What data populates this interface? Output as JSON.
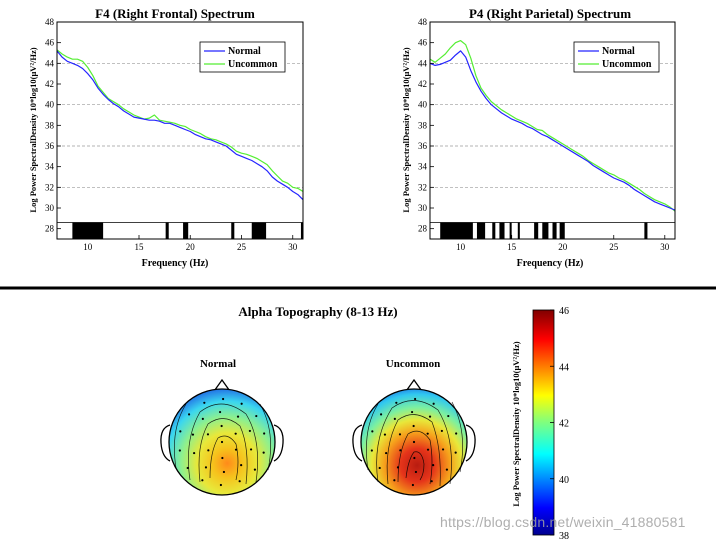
{
  "divider_color": "#000000",
  "colors": {
    "normal": "#2525ff",
    "uncommon": "#55ee33"
  },
  "chart_data": [
    {
      "type": "line",
      "title": "F4 (Right Frontal) Spectrum",
      "xlabel": "Frequency (Hz)",
      "ylabel": "Log Power SpectralDensity 10*log10(μV²/Hz)",
      "xlim": [
        7,
        31
      ],
      "ylim": [
        27,
        48
      ],
      "xticks": [
        10,
        15,
        20,
        25,
        30
      ],
      "yticks": [
        28,
        30,
        32,
        34,
        36,
        38,
        40,
        42,
        44,
        46,
        48
      ],
      "legend_position": "top-right",
      "series": [
        {
          "name": "Normal",
          "x": [
            7,
            7.5,
            8,
            8.5,
            9,
            9.5,
            10,
            10.5,
            11,
            11.5,
            12,
            12.5,
            13,
            13.5,
            14,
            14.5,
            15,
            15.5,
            16,
            16.5,
            17,
            17.5,
            18,
            18.5,
            19,
            19.5,
            20,
            20.5,
            21,
            21.5,
            22,
            22.5,
            23,
            23.5,
            24,
            24.5,
            25,
            25.5,
            26,
            26.5,
            27,
            27.5,
            28,
            28.5,
            29,
            29.5,
            30,
            30.5,
            31
          ],
          "y": [
            45.2,
            44.6,
            44.2,
            44.0,
            43.8,
            43.5,
            43.0,
            42.4,
            41.6,
            41.0,
            40.5,
            40.1,
            39.8,
            39.4,
            39.1,
            38.8,
            38.7,
            38.6,
            38.5,
            38.5,
            38.4,
            38.2,
            38.2,
            38.0,
            37.8,
            37.6,
            37.4,
            37.1,
            36.9,
            36.7,
            36.6,
            36.4,
            36.2,
            36.0,
            35.6,
            35.2,
            35.0,
            34.8,
            34.6,
            34.3,
            34.0,
            33.6,
            33.0,
            32.6,
            32.3,
            32.0,
            31.6,
            31.3,
            30.8
          ]
        },
        {
          "name": "Uncommon",
          "x": [
            7,
            7.5,
            8,
            8.5,
            9,
            9.5,
            10,
            10.5,
            11,
            11.5,
            12,
            12.5,
            13,
            13.5,
            14,
            14.5,
            15,
            15.5,
            16,
            16.5,
            17,
            17.5,
            18,
            18.5,
            19,
            19.5,
            20,
            20.5,
            21,
            21.5,
            22,
            22.5,
            23,
            23.5,
            24,
            24.5,
            25,
            25.5,
            26,
            26.5,
            27,
            27.5,
            28,
            28.5,
            29,
            29.5,
            30,
            30.5,
            31
          ],
          "y": [
            45.3,
            44.9,
            44.6,
            44.4,
            44.4,
            44.2,
            43.6,
            42.8,
            41.8,
            41.2,
            40.6,
            40.3,
            40.0,
            39.6,
            39.3,
            39.0,
            38.8,
            38.6,
            38.7,
            39.0,
            38.5,
            38.4,
            38.3,
            38.2,
            38.0,
            37.9,
            37.6,
            37.4,
            37.2,
            36.9,
            36.7,
            36.6,
            36.4,
            36.2,
            35.9,
            35.5,
            35.3,
            35.2,
            35.0,
            34.8,
            34.5,
            34.2,
            33.6,
            33.1,
            32.6,
            32.4,
            32.0,
            31.9,
            31.6
          ]
        }
      ],
      "significance_bars_hz": [
        [
          8.5,
          11.5
        ],
        [
          17.6,
          17.9
        ],
        [
          19.3,
          19.8
        ],
        [
          24.0,
          24.3
        ],
        [
          26.0,
          27.4
        ],
        [
          30.8,
          31.0
        ]
      ]
    },
    {
      "type": "line",
      "title": "P4 (Right Parietal) Spectrum",
      "xlabel": "Frequency (Hz)",
      "ylabel": "Log Power SpectralDensity 10*log10(μV²/Hz)",
      "xlim": [
        7,
        31
      ],
      "ylim": [
        27,
        48
      ],
      "xticks": [
        10,
        15,
        20,
        25,
        30
      ],
      "yticks": [
        28,
        30,
        32,
        34,
        36,
        38,
        40,
        42,
        44,
        46,
        48
      ],
      "legend_position": "top-right",
      "series": [
        {
          "name": "Normal",
          "x": [
            7,
            7.5,
            8,
            8.5,
            9,
            9.5,
            10,
            10.5,
            11,
            11.5,
            12,
            12.5,
            13,
            13.5,
            14,
            14.5,
            15,
            15.5,
            16,
            16.5,
            17,
            17.5,
            18,
            18.5,
            19,
            19.5,
            20,
            20.5,
            21,
            21.5,
            22,
            22.5,
            23,
            23.5,
            24,
            24.5,
            25,
            25.5,
            26,
            26.5,
            27,
            27.5,
            28,
            28.5,
            29,
            29.5,
            30,
            30.5,
            31
          ],
          "y": [
            44.0,
            43.8,
            43.9,
            44.1,
            44.3,
            44.8,
            45.2,
            44.6,
            43.3,
            42.2,
            41.3,
            40.6,
            40.0,
            39.6,
            39.2,
            38.9,
            38.6,
            38.4,
            38.2,
            37.9,
            37.7,
            37.4,
            37.1,
            36.9,
            36.6,
            36.3,
            36.0,
            35.7,
            35.4,
            35.1,
            34.8,
            34.5,
            34.1,
            33.8,
            33.5,
            33.2,
            32.9,
            32.7,
            32.5,
            32.2,
            31.8,
            31.5,
            31.2,
            30.9,
            30.6,
            30.4,
            30.2,
            30.0,
            29.8
          ]
        },
        {
          "name": "Uncommon",
          "x": [
            7,
            7.5,
            8,
            8.5,
            9,
            9.5,
            10,
            10.5,
            11,
            11.5,
            12,
            12.5,
            13,
            13.5,
            14,
            14.5,
            15,
            15.5,
            16,
            16.5,
            17,
            17.5,
            18,
            18.5,
            19,
            19.5,
            20,
            20.5,
            21,
            21.5,
            22,
            22.5,
            23,
            23.5,
            24,
            24.5,
            25,
            25.5,
            26,
            26.5,
            27,
            27.5,
            28,
            28.5,
            29,
            29.5,
            30,
            30.5,
            31
          ],
          "y": [
            44.4,
            44.1,
            44.5,
            44.9,
            45.5,
            46.0,
            46.2,
            45.8,
            44.5,
            42.8,
            41.6,
            40.9,
            40.3,
            39.9,
            39.5,
            39.2,
            38.9,
            38.6,
            38.4,
            38.2,
            37.9,
            37.6,
            37.5,
            37.1,
            36.8,
            36.5,
            36.2,
            35.9,
            35.6,
            35.3,
            35.0,
            34.6,
            34.3,
            34.0,
            33.7,
            33.4,
            33.2,
            32.9,
            32.7,
            32.4,
            32.1,
            31.8,
            31.4,
            31.1,
            30.8,
            30.6,
            30.4,
            30.1,
            29.7
          ]
        }
      ],
      "significance_bars_hz": [
        [
          8.0,
          11.2
        ],
        [
          11.6,
          12.4
        ],
        [
          13.1,
          13.4
        ],
        [
          13.8,
          14.3
        ],
        [
          14.8,
          15.0
        ],
        [
          15.6,
          15.8
        ],
        [
          17.2,
          17.6
        ],
        [
          18.0,
          18.6
        ],
        [
          19.0,
          19.4
        ],
        [
          19.7,
          20.2
        ],
        [
          28.0,
          28.3
        ]
      ]
    },
    {
      "type": "heatmap",
      "title": "Alpha Topography (8-13 Hz)",
      "subplots": [
        {
          "name": "Normal",
          "peak_value": 43.6,
          "edge_value": 40.2
        },
        {
          "name": "Uncommon",
          "peak_value": 45.4,
          "edge_value": 40.8
        }
      ],
      "colorbar": {
        "label": "Log Power SpectralDensity 10*log10(μV²/Hz)",
        "range": [
          38,
          46
        ],
        "ticks": [
          38,
          40,
          42,
          44,
          46
        ]
      }
    }
  ],
  "watermark": "https://blog.csdn.net/weixin_41880581"
}
